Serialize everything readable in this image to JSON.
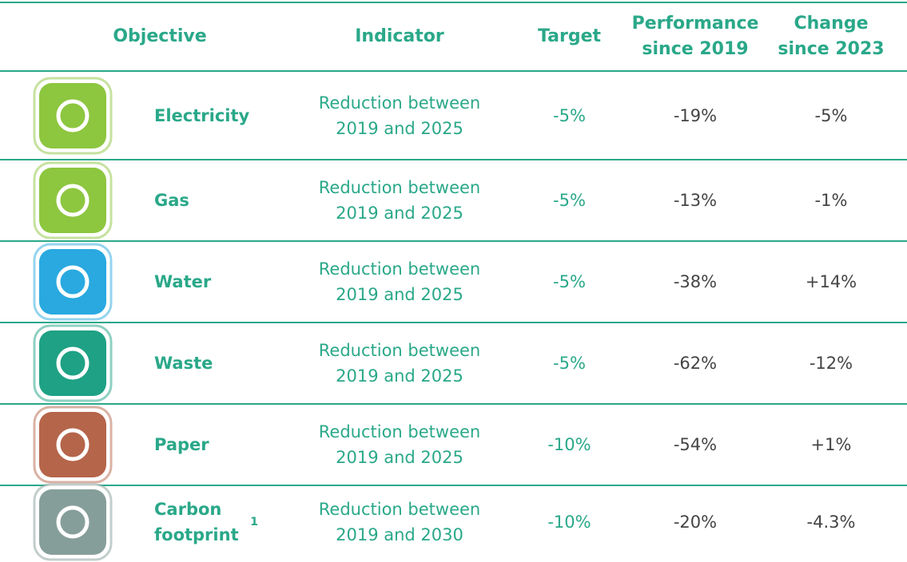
{
  "table": {
    "header": [
      "Objective",
      "Indicator",
      "Target",
      "Performance since 2019",
      "Change since 2023"
    ],
    "rows": [
      {
        "objective": "Electricity",
        "indicator": "Reduction between 2019 and 2025",
        "target": "-5%",
        "performance": "-19%",
        "change": "-5%"
      },
      {
        "objective": "Gas",
        "indicator": "Reduction between 2019 and 2025",
        "target": "-5%",
        "performance": "-13%",
        "change": "-1%"
      },
      {
        "objective": "Water",
        "indicator": "Reduction between 2019 and 2025",
        "target": "-5%",
        "performance": "-38%",
        "change": "+14%"
      },
      {
        "objective": "Waste",
        "indicator": "Reduction between 2019 and 2025",
        "target": "-5%",
        "performance": "-62%",
        "change": "-12%"
      },
      {
        "objective": "Paper",
        "indicator": "Reduction between 2019 and 2025",
        "target": "-10%",
        "performance": "-54%",
        "change": "+1%"
      },
      {
        "objective": "Carbon footprint",
        "footnote": "1",
        "indicator": "Reduction between 2019 and 2030",
        "target": "-10%",
        "performance": "-20%",
        "change": "-4.3%"
      }
    ]
  }
}
